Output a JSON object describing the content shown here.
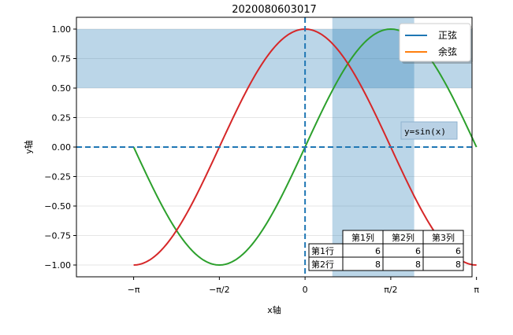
{
  "chart_data": {
    "type": "line",
    "title": "2020080603017",
    "xlabel": "x轴",
    "ylabel": "y轴",
    "xlim": [
      -4.19,
      3.06
    ],
    "ylim": [
      -1.1,
      1.1
    ],
    "x_ticks": [
      {
        "value": -3.14159,
        "label": "−π"
      },
      {
        "value": -1.5708,
        "label": "−π/2"
      },
      {
        "value": 0,
        "label": "0"
      },
      {
        "value": 1.5708,
        "label": "π/2"
      },
      {
        "value": 3.14159,
        "label": "π"
      }
    ],
    "y_ticks": [
      {
        "value": 1.0,
        "label": "1.00"
      },
      {
        "value": 0.75,
        "label": "0.75"
      },
      {
        "value": 0.5,
        "label": "0.50"
      },
      {
        "value": 0.25,
        "label": "0.25"
      },
      {
        "value": 0.0,
        "label": "0.00"
      },
      {
        "value": -0.25,
        "label": "−0.25"
      },
      {
        "value": -0.5,
        "label": "−0.50"
      },
      {
        "value": -0.75,
        "label": "−0.75"
      },
      {
        "value": -1.0,
        "label": "−1.00"
      }
    ],
    "series": [
      {
        "name": "正弦",
        "function": "sin",
        "x_range": [
          -3.14159,
          3.14159
        ],
        "legend_color": "#1f77b4",
        "line_color": "#2ca02c"
      },
      {
        "name": "余弦",
        "function": "cos",
        "x_range": [
          -3.14159,
          3.14159
        ],
        "legend_color": "#ff7f0e",
        "line_color": "#d62728"
      }
    ],
    "reference_lines": {
      "x": 0,
      "y": 0,
      "color": "#1f77b4",
      "style": "dashed"
    },
    "shaded_spans": [
      {
        "orientation": "horizontal",
        "from": 0.5,
        "to": 1.0,
        "color": "#1f77b4",
        "opacity": 0.3
      },
      {
        "orientation": "vertical",
        "from": 0.5,
        "to": 2.0,
        "color": "#1f77b4",
        "opacity": 0.3
      }
    ],
    "annotation": {
      "text": "y=sin(x)",
      "x": 3.0,
      "y": 0.1
    },
    "legend_position": "upper right",
    "grid": "horizontal lines",
    "table": {
      "column_headers": [
        "第1列",
        "第2列",
        "第3列"
      ],
      "rows": [
        {
          "label": "第1行",
          "values": [
            "6",
            "6",
            "6"
          ]
        },
        {
          "label": "第2行",
          "values": [
            "8",
            "8",
            "8"
          ]
        }
      ],
      "position": "lower right"
    }
  }
}
